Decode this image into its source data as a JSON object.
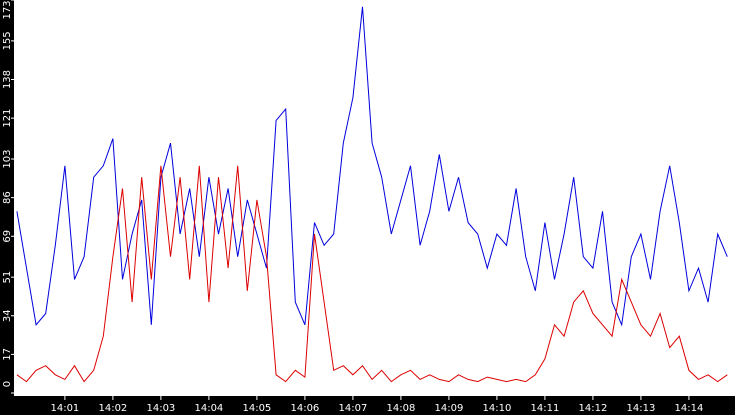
{
  "chart_data": {
    "type": "line",
    "x": [
      0,
      0.2,
      0.4,
      0.6,
      0.8,
      1,
      1.2,
      1.4,
      1.6,
      1.8,
      2,
      2.2,
      2.4,
      2.6,
      2.8,
      3,
      3.2,
      3.4,
      3.6,
      3.8,
      4,
      4.2,
      4.4,
      4.6,
      4.8,
      5,
      5.2,
      5.4,
      5.6,
      5.8,
      6,
      6.2,
      6.4,
      6.6,
      6.8,
      7,
      7.2,
      7.4,
      7.6,
      7.8,
      8,
      8.2,
      8.4,
      8.6,
      8.8,
      9,
      9.2,
      9.4,
      9.6,
      9.8,
      10,
      10.2,
      10.4,
      10.6,
      10.8,
      11,
      11.2,
      11.4,
      11.6,
      11.8,
      12,
      12.2,
      12.4,
      12.6,
      12.8,
      13,
      13.2,
      13.4,
      13.6,
      13.8,
      14,
      14.2,
      14.4,
      14.6,
      14.8
    ],
    "series": [
      {
        "color": "#0000dd",
        "values": [
          80,
          55,
          30,
          35,
          65,
          100,
          50,
          60,
          95,
          100,
          112,
          50,
          70,
          85,
          30,
          95,
          110,
          70,
          90,
          60,
          95,
          70,
          90,
          60,
          85,
          70,
          55,
          120,
          125,
          40,
          30,
          75,
          65,
          70,
          110,
          130,
          170,
          110,
          95,
          70,
          85,
          100,
          65,
          80,
          105,
          80,
          95,
          75,
          70,
          55,
          70,
          65,
          90,
          60,
          45,
          75,
          50,
          70,
          95,
          60,
          55,
          80,
          40,
          30,
          60,
          70,
          50,
          80,
          100,
          75,
          45,
          55,
          40,
          70,
          60
        ]
      },
      {
        "color": "#dd0000",
        "values": [
          8,
          5,
          10,
          12,
          8,
          6,
          12,
          5,
          10,
          25,
          60,
          90,
          40,
          95,
          50,
          100,
          60,
          95,
          50,
          100,
          40,
          95,
          55,
          100,
          45,
          85,
          60,
          8,
          5,
          10,
          7,
          70,
          40,
          10,
          12,
          8,
          12,
          6,
          10,
          5,
          8,
          10,
          6,
          8,
          6,
          5,
          8,
          6,
          5,
          7,
          6,
          5,
          6,
          5,
          8,
          15,
          30,
          25,
          40,
          45,
          35,
          30,
          25,
          50,
          40,
          30,
          25,
          35,
          20,
          25,
          10,
          6,
          8,
          5,
          8
        ]
      }
    ],
    "xlim": [
      -0.06,
      14.96
    ],
    "xticks": [
      {
        "value": 1,
        "label": "14:01"
      },
      {
        "value": 2,
        "label": "14:02"
      },
      {
        "value": 3,
        "label": "14:03"
      },
      {
        "value": 4,
        "label": "14:04"
      },
      {
        "value": 5,
        "label": "14:05"
      },
      {
        "value": 6,
        "label": "14:06"
      },
      {
        "value": 7,
        "label": "14:07"
      },
      {
        "value": 8,
        "label": "14:08"
      },
      {
        "value": 9,
        "label": "14:09"
      },
      {
        "value": 10,
        "label": "14:10"
      },
      {
        "value": 11,
        "label": "14:11"
      },
      {
        "value": 12,
        "label": "14:12"
      },
      {
        "value": 13,
        "label": "14:13"
      },
      {
        "value": 14,
        "label": "14:14"
      }
    ],
    "ylim": [
      0,
      173
    ],
    "yticks": [
      0,
      17,
      34,
      51,
      69,
      86,
      103,
      121,
      138,
      155,
      173
    ]
  }
}
